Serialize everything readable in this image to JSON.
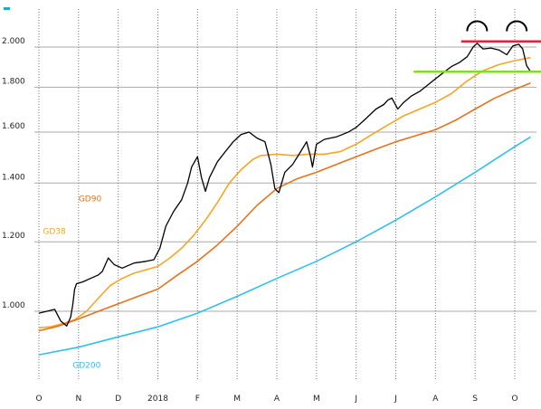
{
  "chart_data": {
    "type": "line",
    "title": "",
    "xlabel": "",
    "ylabel": "",
    "x_ticks": [
      "O",
      "N",
      "D",
      "2018",
      "F",
      "M",
      "A",
      "M",
      "J",
      "J",
      "A",
      "S",
      "O"
    ],
    "y_ticks": [
      "1.000",
      "1.200",
      "1.400",
      "1.600",
      "1.800",
      "2.000"
    ],
    "y_scale": "log",
    "ylim": [
      850,
      2100
    ],
    "x_range_months": [
      0,
      12.7
    ],
    "grid": {
      "x": true,
      "y": true
    },
    "legend": "none",
    "series": [
      {
        "name": "",
        "color": "#000000",
        "points": [
          [
            0.0,
            995
          ],
          [
            0.2,
            1000
          ],
          [
            0.4,
            1005
          ],
          [
            0.55,
            975
          ],
          [
            0.7,
            962
          ],
          [
            0.8,
            985
          ],
          [
            0.85,
            1015
          ],
          [
            0.9,
            1060
          ],
          [
            0.95,
            1075
          ],
          [
            1.1,
            1080
          ],
          [
            1.3,
            1090
          ],
          [
            1.5,
            1100
          ],
          [
            1.6,
            1110
          ],
          [
            1.75,
            1150
          ],
          [
            1.9,
            1130
          ],
          [
            2.1,
            1120
          ],
          [
            2.4,
            1135
          ],
          [
            2.7,
            1140
          ],
          [
            2.9,
            1145
          ],
          [
            3.05,
            1180
          ],
          [
            3.2,
            1250
          ],
          [
            3.4,
            1300
          ],
          [
            3.6,
            1340
          ],
          [
            3.75,
            1400
          ],
          [
            3.85,
            1460
          ],
          [
            4.0,
            1500
          ],
          [
            4.1,
            1420
          ],
          [
            4.2,
            1370
          ],
          [
            4.3,
            1420
          ],
          [
            4.5,
            1480
          ],
          [
            4.7,
            1520
          ],
          [
            4.9,
            1560
          ],
          [
            5.1,
            1590
          ],
          [
            5.3,
            1600
          ],
          [
            5.5,
            1575
          ],
          [
            5.7,
            1560
          ],
          [
            5.85,
            1470
          ],
          [
            5.95,
            1380
          ],
          [
            6.05,
            1365
          ],
          [
            6.2,
            1440
          ],
          [
            6.4,
            1470
          ],
          [
            6.6,
            1520
          ],
          [
            6.75,
            1560
          ],
          [
            6.85,
            1500
          ],
          [
            6.9,
            1460
          ],
          [
            7.0,
            1550
          ],
          [
            7.2,
            1570
          ],
          [
            7.5,
            1580
          ],
          [
            7.8,
            1600
          ],
          [
            8.0,
            1620
          ],
          [
            8.2,
            1650
          ],
          [
            8.5,
            1700
          ],
          [
            8.7,
            1720
          ],
          [
            8.8,
            1740
          ],
          [
            8.9,
            1750
          ],
          [
            9.05,
            1700
          ],
          [
            9.2,
            1730
          ],
          [
            9.4,
            1760
          ],
          [
            9.6,
            1780
          ],
          [
            9.8,
            1810
          ],
          [
            10.0,
            1840
          ],
          [
            10.2,
            1870
          ],
          [
            10.4,
            1900
          ],
          [
            10.6,
            1920
          ],
          [
            10.8,
            1950
          ],
          [
            10.95,
            2000
          ],
          [
            11.05,
            2020
          ],
          [
            11.2,
            1990
          ],
          [
            11.4,
            1995
          ],
          [
            11.6,
            1985
          ],
          [
            11.8,
            1960
          ],
          [
            11.95,
            2005
          ],
          [
            12.1,
            2015
          ],
          [
            12.2,
            1990
          ],
          [
            12.3,
            1905
          ],
          [
            12.4,
            1875
          ]
        ]
      },
      {
        "name": "GD38",
        "color": "#f5a623",
        "points": [
          [
            0.0,
            958
          ],
          [
            0.3,
            960
          ],
          [
            0.6,
            968
          ],
          [
            0.9,
            978
          ],
          [
            1.2,
            1000
          ],
          [
            1.5,
            1035
          ],
          [
            1.8,
            1070
          ],
          [
            2.1,
            1090
          ],
          [
            2.4,
            1105
          ],
          [
            2.7,
            1115
          ],
          [
            3.0,
            1125
          ],
          [
            3.3,
            1150
          ],
          [
            3.6,
            1180
          ],
          [
            3.9,
            1220
          ],
          [
            4.2,
            1270
          ],
          [
            4.5,
            1330
          ],
          [
            4.8,
            1400
          ],
          [
            5.1,
            1450
          ],
          [
            5.4,
            1490
          ],
          [
            5.6,
            1505
          ],
          [
            6.0,
            1510
          ],
          [
            6.4,
            1505
          ],
          [
            6.8,
            1510
          ],
          [
            7.2,
            1510
          ],
          [
            7.6,
            1520
          ],
          [
            8.0,
            1550
          ],
          [
            8.4,
            1590
          ],
          [
            8.8,
            1630
          ],
          [
            9.2,
            1670
          ],
          [
            9.6,
            1700
          ],
          [
            10.0,
            1730
          ],
          [
            10.4,
            1770
          ],
          [
            10.8,
            1830
          ],
          [
            11.2,
            1880
          ],
          [
            11.6,
            1910
          ],
          [
            12.0,
            1930
          ],
          [
            12.4,
            1945
          ]
        ]
      },
      {
        "name": "GD90",
        "color": "#e8721c",
        "points": [
          [
            0.0,
            950
          ],
          [
            0.5,
            962
          ],
          [
            1.0,
            980
          ],
          [
            1.5,
            1000
          ],
          [
            2.0,
            1020
          ],
          [
            2.5,
            1040
          ],
          [
            3.0,
            1060
          ],
          [
            3.5,
            1100
          ],
          [
            4.0,
            1140
          ],
          [
            4.5,
            1190
          ],
          [
            5.0,
            1250
          ],
          [
            5.5,
            1320
          ],
          [
            6.0,
            1380
          ],
          [
            6.5,
            1415
          ],
          [
            7.0,
            1440
          ],
          [
            7.5,
            1470
          ],
          [
            8.0,
            1500
          ],
          [
            8.5,
            1530
          ],
          [
            9.0,
            1560
          ],
          [
            9.5,
            1585
          ],
          [
            10.0,
            1610
          ],
          [
            10.5,
            1650
          ],
          [
            11.0,
            1700
          ],
          [
            11.5,
            1750
          ],
          [
            12.0,
            1790
          ],
          [
            12.4,
            1820
          ]
        ]
      },
      {
        "name": "GD200",
        "color": "#2ec0f0",
        "points": [
          [
            0.0,
            892
          ],
          [
            1.0,
            910
          ],
          [
            2.0,
            935
          ],
          [
            3.0,
            960
          ],
          [
            4.0,
            995
          ],
          [
            5.0,
            1040
          ],
          [
            6.0,
            1090
          ],
          [
            7.0,
            1140
          ],
          [
            8.0,
            1200
          ],
          [
            9.0,
            1270
          ],
          [
            10.0,
            1350
          ],
          [
            11.0,
            1440
          ],
          [
            12.0,
            1540
          ],
          [
            12.4,
            1580
          ]
        ]
      }
    ],
    "levels": [
      {
        "color": "#e8213a",
        "y": 2030,
        "x_from": 10.65,
        "x_to": 12.7
      },
      {
        "color": "#7fe021",
        "y": 1875,
        "x_from": 9.45,
        "x_to": 12.7
      }
    ],
    "annotations": [
      {
        "shape": "arc",
        "color": "#000000",
        "x": 11.05,
        "y": 2085
      },
      {
        "shape": "arc",
        "color": "#000000",
        "x": 12.05,
        "y": 2085
      }
    ],
    "series_labels": [
      {
        "text": "GD90",
        "color": "#e8721c",
        "x": 1.0,
        "y": 1335
      },
      {
        "text": "GD38",
        "color": "#f5a623",
        "x": 0.1,
        "y": 1225
      },
      {
        "text": "GD200",
        "color": "#2ec0f0",
        "x": 0.85,
        "y": 862
      }
    ],
    "accent_color": "#1aa9d8"
  }
}
